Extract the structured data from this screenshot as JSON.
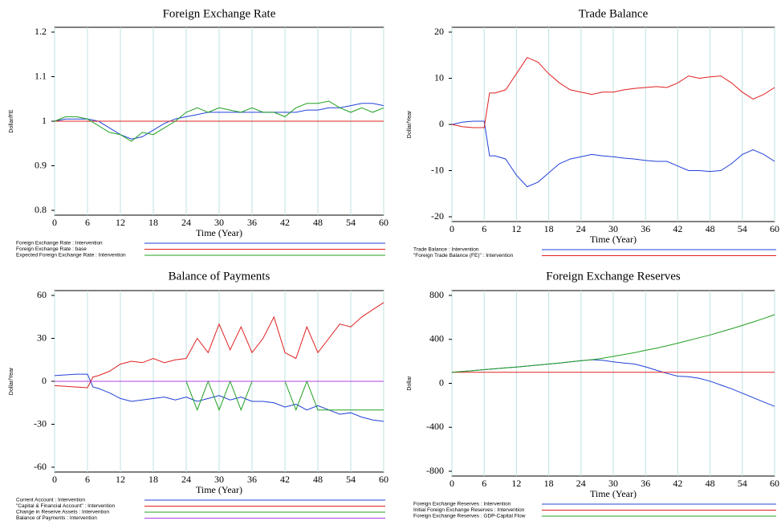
{
  "chart_data": [
    {
      "type": "line",
      "title": "Foreign Exchange Rate",
      "xlabel": "Time (Year)",
      "ylabel": "Dollar/FE",
      "x": [
        0,
        2,
        4,
        6,
        8,
        10,
        12,
        14,
        16,
        18,
        20,
        22,
        24,
        26,
        28,
        30,
        32,
        34,
        36,
        38,
        40,
        42,
        44,
        46,
        48,
        50,
        52,
        54,
        56,
        58,
        60
      ],
      "xlim": [
        0,
        60
      ],
      "xticks": [
        0,
        6,
        12,
        18,
        24,
        30,
        36,
        42,
        48,
        54,
        60
      ],
      "ylim": [
        0.8,
        1.2
      ],
      "yticks": [
        0.8,
        0.9,
        1,
        1.1,
        1.2
      ],
      "grid": true,
      "series": [
        {
          "name": "Foreign Exchange Rate : Intervention",
          "color": "#2040d8",
          "values": [
            1.0,
            1.005,
            1.005,
            1.005,
            1.0,
            0.985,
            0.97,
            0.96,
            0.965,
            0.98,
            0.995,
            1.005,
            1.01,
            1.015,
            1.02,
            1.02,
            1.02,
            1.02,
            1.02,
            1.02,
            1.02,
            1.02,
            1.02,
            1.025,
            1.025,
            1.03,
            1.03,
            1.035,
            1.04,
            1.04,
            1.035
          ]
        },
        {
          "name": "Foreign Exchange Rate : base",
          "color": "#e02020",
          "values": [
            1,
            1,
            1,
            1,
            1,
            1,
            1,
            1,
            1,
            1,
            1,
            1,
            1,
            1,
            1,
            1,
            1,
            1,
            1,
            1,
            1,
            1,
            1,
            1,
            1,
            1,
            1,
            1,
            1,
            1,
            1
          ]
        },
        {
          "name": "Expected Foreign Exchange Rate : Intervention",
          "color": "#20a020",
          "values": [
            1.0,
            1.01,
            1.01,
            1.005,
            0.99,
            0.975,
            0.97,
            0.955,
            0.975,
            0.97,
            0.985,
            1.0,
            1.02,
            1.03,
            1.02,
            1.03,
            1.025,
            1.02,
            1.03,
            1.02,
            1.02,
            1.01,
            1.03,
            1.04,
            1.04,
            1.045,
            1.03,
            1.02,
            1.03,
            1.02,
            1.03
          ]
        }
      ]
    },
    {
      "type": "line",
      "title": "Trade Balance",
      "xlabel": "Time (Year)",
      "ylabel": "Dollar/Year",
      "x": [
        0,
        2,
        4,
        6,
        7,
        8,
        10,
        12,
        14,
        16,
        18,
        20,
        22,
        24,
        26,
        28,
        30,
        32,
        34,
        36,
        38,
        40,
        42,
        44,
        46,
        48,
        50,
        52,
        54,
        56,
        58,
        60
      ],
      "xlim": [
        0,
        60
      ],
      "xticks": [
        0,
        6,
        12,
        18,
        24,
        30,
        36,
        42,
        48,
        54,
        60
      ],
      "ylim": [
        -20,
        20
      ],
      "yticks": [
        -20,
        -10,
        0,
        10,
        20
      ],
      "grid": true,
      "series": [
        {
          "name": "Trade Balance : Intervention",
          "color": "#2040d8",
          "values": [
            0,
            0.5,
            0.7,
            0.7,
            -6.8,
            -6.8,
            -7.5,
            -11,
            -13.5,
            -12.5,
            -10.5,
            -8.5,
            -7.5,
            -7,
            -6.5,
            -6.8,
            -7,
            -7.3,
            -7.5,
            -7.8,
            -8,
            -8,
            -9,
            -10,
            -10,
            -10.2,
            -10,
            -8.5,
            -6.5,
            -5.5,
            -6.5,
            -8
          ]
        },
        {
          "name": "\"Foreign Trade Balance (FE)\" : Intervention",
          "color": "#e02020",
          "values": [
            0,
            -0.5,
            -0.7,
            -0.7,
            6.8,
            6.8,
            7.5,
            11,
            14.5,
            13.5,
            11,
            9,
            7.5,
            7,
            6.5,
            7,
            7,
            7.5,
            7.8,
            8,
            8.2,
            8,
            9,
            10.5,
            10,
            10.3,
            10.5,
            9,
            7,
            5.5,
            6.5,
            8
          ]
        }
      ]
    },
    {
      "type": "line",
      "title": "Balance of Payments",
      "xlabel": "Time (Year)",
      "ylabel": "Dollar/Year",
      "x": [
        0,
        2,
        4,
        6,
        7,
        8,
        10,
        12,
        14,
        16,
        18,
        20,
        22,
        24,
        26,
        28,
        30,
        32,
        34,
        36,
        38,
        40,
        42,
        44,
        46,
        48,
        50,
        52,
        54,
        56,
        58,
        60
      ],
      "xlim": [
        0,
        60
      ],
      "xticks": [
        0,
        6,
        12,
        18,
        24,
        30,
        36,
        42,
        48,
        54,
        60
      ],
      "ylim": [
        -60,
        60
      ],
      "yticks": [
        -60,
        -30,
        0,
        30,
        60
      ],
      "grid": true,
      "series": [
        {
          "name": "Current Account : Intervention",
          "color": "#2040d8",
          "values": [
            4,
            4.5,
            5,
            5,
            -4,
            -5,
            -8,
            -12,
            -14,
            -13,
            -12,
            -11,
            -13,
            -11,
            -14,
            -12,
            -10,
            -13,
            -11,
            -14,
            -14,
            -15,
            -18,
            -16,
            -20,
            -17,
            -20,
            -23,
            -22,
            -25,
            -27,
            -28
          ]
        },
        {
          "name": "\"Capital & Financial Account\" : Intervention",
          "color": "#e02020",
          "values": [
            -3,
            -3.5,
            -4,
            -4.5,
            3,
            4,
            7,
            12,
            14,
            13,
            16,
            13,
            15,
            16,
            30,
            20,
            40,
            22,
            38,
            20,
            30,
            45,
            20,
            16,
            38,
            20,
            30,
            40,
            38,
            45,
            50,
            55
          ]
        },
        {
          "name": "Change in Reserve Assets : Intervention",
          "color": "#20a020",
          "values": [
            0,
            0,
            0,
            0,
            0,
            0,
            0,
            0,
            0,
            0,
            0,
            0,
            0,
            0,
            -20,
            0,
            -20,
            0,
            -20,
            0,
            0,
            0,
            0,
            -20,
            0,
            -20,
            -20,
            -20,
            -20,
            -20,
            -20,
            -20
          ]
        },
        {
          "name": "Balance of Payments : Intervention",
          "color": "#b040e0",
          "values": [
            0,
            0,
            0,
            0,
            0,
            0,
            0,
            0,
            0,
            0,
            0,
            0,
            0,
            0,
            0,
            0,
            0,
            0,
            0,
            0,
            0,
            0,
            0,
            0,
            0,
            0,
            0,
            0,
            0,
            0,
            0,
            0
          ]
        }
      ]
    },
    {
      "type": "line",
      "title": "Foreign Exchange Reserves",
      "xlabel": "Time (Year)",
      "ylabel": "Dollar",
      "x": [
        0,
        2,
        4,
        6,
        8,
        10,
        12,
        14,
        16,
        18,
        20,
        22,
        24,
        26,
        28,
        30,
        32,
        34,
        36,
        38,
        40,
        42,
        44,
        46,
        48,
        50,
        52,
        54,
        56,
        58,
        60
      ],
      "xlim": [
        0,
        60
      ],
      "xticks": [
        0,
        6,
        12,
        18,
        24,
        30,
        36,
        42,
        48,
        54,
        60
      ],
      "ylim": [
        -800,
        800
      ],
      "yticks": [
        -800,
        -400,
        0,
        400,
        800
      ],
      "grid": true,
      "series": [
        {
          "name": "Foreign Exchange Reserves : Intervention",
          "color": "#2040d8",
          "values": [
            100,
            108,
            116,
            124,
            132,
            140,
            148,
            157,
            166,
            175,
            185,
            195,
            205,
            215,
            210,
            195,
            185,
            175,
            150,
            120,
            90,
            65,
            60,
            45,
            20,
            -15,
            -50,
            -90,
            -130,
            -170,
            -210
          ]
        },
        {
          "name": "Initial Foreign Exchange Reserves : Intervention",
          "color": "#e02020",
          "values": [
            100,
            100,
            100,
            100,
            100,
            100,
            100,
            100,
            100,
            100,
            100,
            100,
            100,
            100,
            100,
            100,
            100,
            100,
            100,
            100,
            100,
            100,
            100,
            100,
            100,
            100,
            100,
            100,
            100,
            100,
            100
          ]
        },
        {
          "name": "Foreign Exchange Reserves : GDP-Capital Flow",
          "color": "#20a020",
          "values": [
            100,
            108,
            116,
            124,
            132,
            140,
            148,
            157,
            166,
            175,
            185,
            195,
            205,
            215,
            228,
            245,
            262,
            280,
            300,
            320,
            342,
            365,
            390,
            415,
            440,
            468,
            497,
            527,
            558,
            590,
            625
          ]
        }
      ]
    }
  ]
}
